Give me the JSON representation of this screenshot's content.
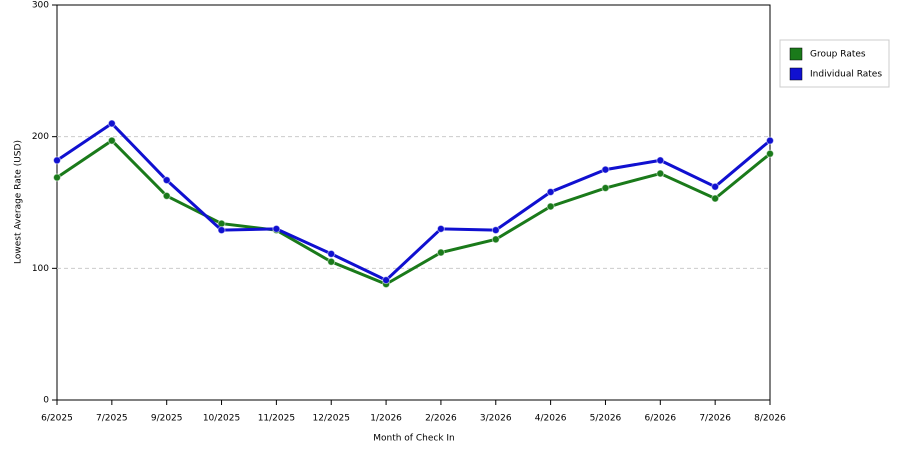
{
  "chart_data": {
    "type": "line",
    "x_label": "Month of Check In",
    "y_label": "Lowest Average Rate (USD)",
    "categories": [
      "6/2025",
      "7/2025",
      "9/2025",
      "10/2025",
      "11/2025",
      "12/2025",
      "1/2026",
      "2/2026",
      "3/2026",
      "4/2026",
      "5/2026",
      "6/2026",
      "7/2026",
      "8/2026"
    ],
    "series": [
      {
        "name": "Group Rates",
        "color": "#1a7a1a",
        "values": [
          169,
          197,
          155,
          134,
          129,
          105,
          88,
          112,
          122,
          147,
          161,
          172,
          153,
          187
        ]
      },
      {
        "name": "Individual Rates",
        "color": "#1010d0",
        "values": [
          182,
          210,
          167,
          129,
          130,
          111,
          91,
          130,
          129,
          158,
          175,
          182,
          162,
          197
        ]
      }
    ],
    "ylim": [
      0,
      300
    ],
    "yticks": [
      0,
      100,
      200,
      300
    ],
    "grid": true,
    "legend": "right"
  }
}
